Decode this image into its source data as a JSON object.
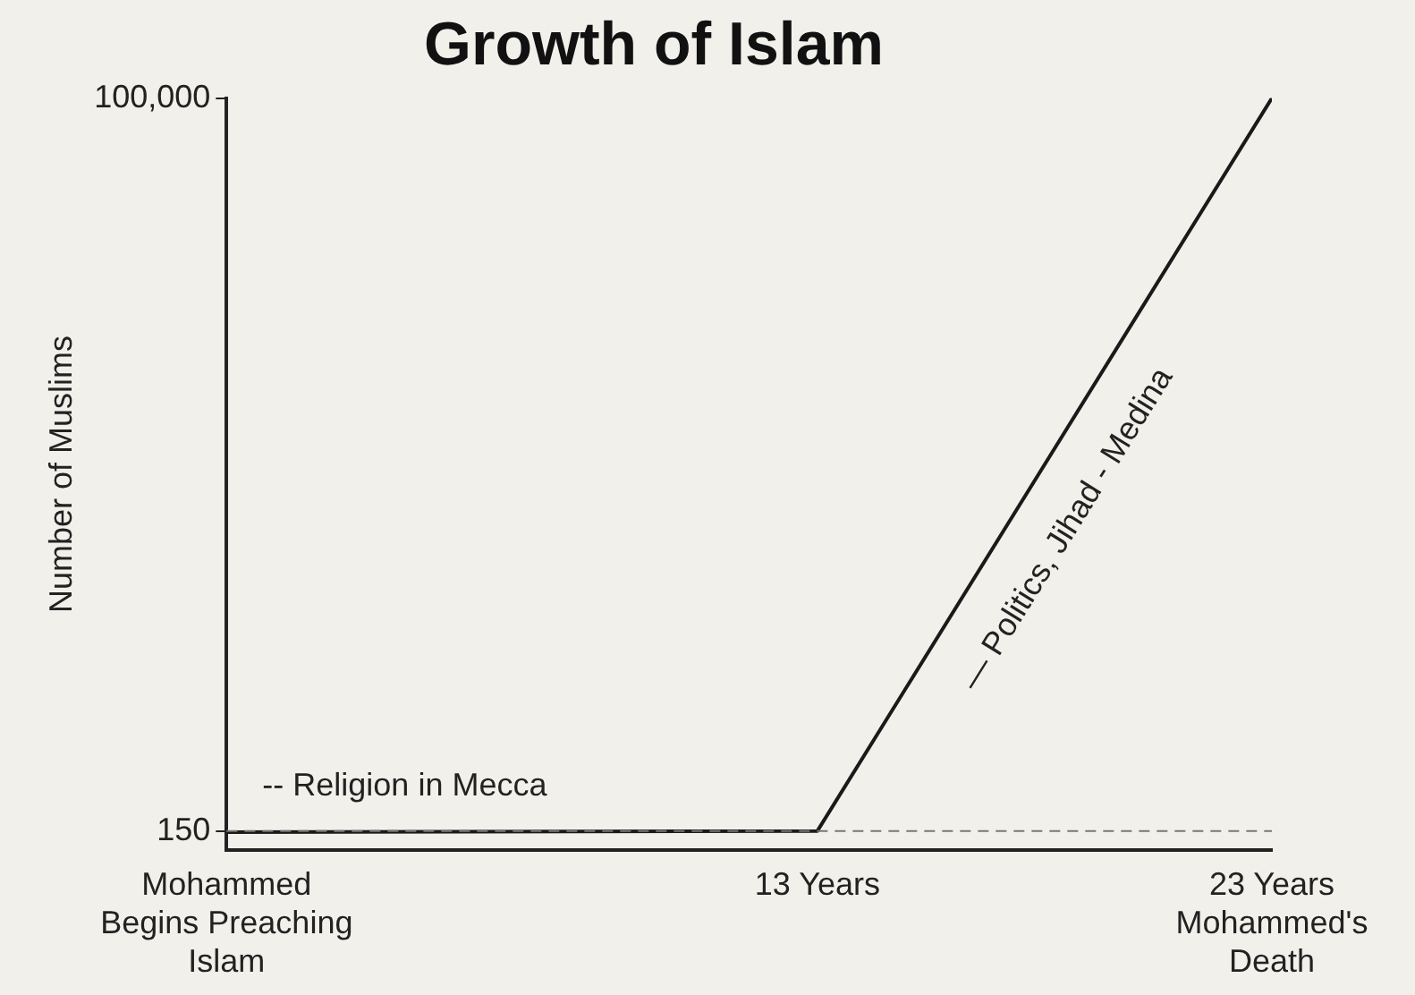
{
  "chart_data": {
    "type": "line",
    "title": "Growth of Islam",
    "ylabel": "Number of Muslims",
    "x": [
      0,
      13,
      23
    ],
    "series": [
      {
        "color": "#1a1a1a",
        "values": [
          0,
          150,
          100000
        ]
      }
    ],
    "xlim": [
      0,
      23
    ],
    "xticks": [
      {
        "value": 0,
        "label": "Mohammed\nBegins Preaching\nIslam"
      },
      {
        "value": 13,
        "label": "13 Years"
      },
      {
        "value": 23,
        "label": "23 Years\nMohammed's\nDeath"
      }
    ],
    "ylim": [
      -2500,
      100000
    ],
    "yticks": [
      150,
      {
        "value": 100000,
        "label": "100,000"
      }
    ],
    "ref_lines": [
      {
        "axis": "y",
        "value": 150,
        "label": "-- Religion in Mecca",
        "color": "#777777",
        "line_style": "dashed"
      }
    ],
    "annotations": [
      "— Politics, Jihad - Medina"
    ],
    "grid": false,
    "legend": false,
    "marker": "none",
    "line_style": "solid"
  }
}
